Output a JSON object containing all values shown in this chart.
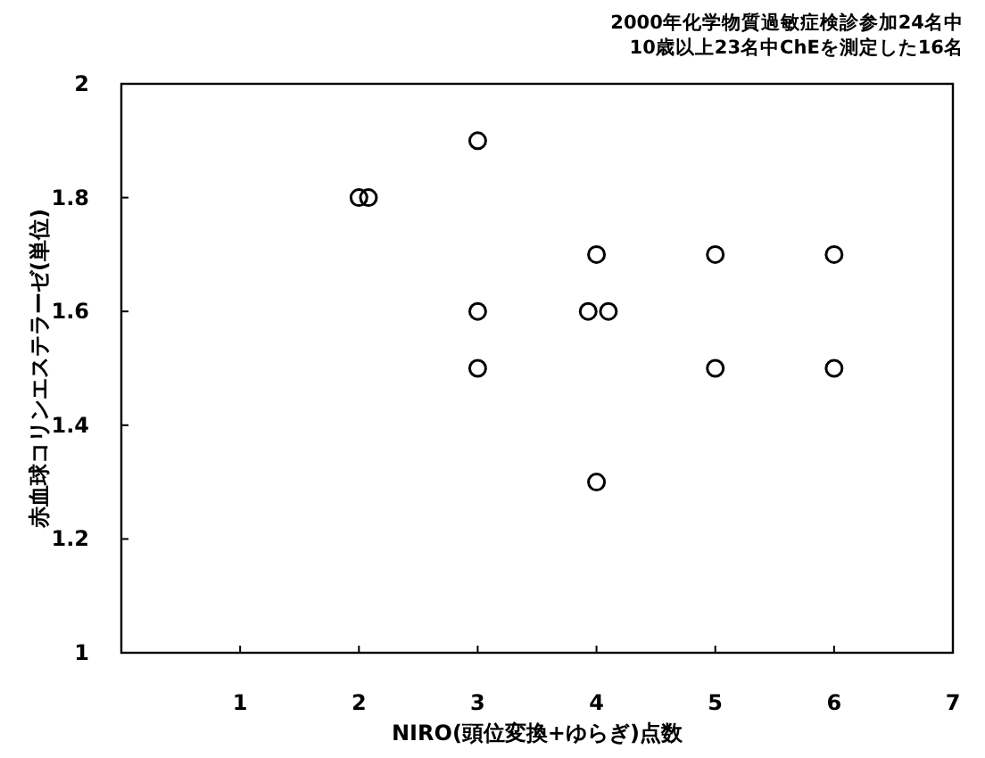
{
  "chart_data": {
    "type": "scatter",
    "title": "2000年化学物質過敏症検診参加24名中",
    "subtitle": "10歳以上23名中ChEを測定した16名",
    "xlabel": "NIRO(頭位変換+ゆらぎ)点数",
    "ylabel": "赤血球コリンエステラーゼ(単位)",
    "xlim": [
      0,
      7
    ],
    "xticks": [
      {
        "value": 0,
        "label": null
      },
      1,
      2,
      3,
      4,
      5,
      6,
      7
    ],
    "ylim": [
      1,
      2
    ],
    "yticks": [
      1,
      1.2,
      1.4,
      1.6,
      1.8,
      2
    ],
    "marker": "circle",
    "grid": false,
    "series": [
      {
        "color": "#000000",
        "x": [
          2.0,
          2.08,
          3,
          3,
          3,
          4,
          3.93,
          4.1,
          4,
          5,
          5,
          6,
          6
        ],
        "values": [
          1.8,
          1.8,
          1.9,
          1.6,
          1.5,
          1.7,
          1.6,
          1.6,
          1.3,
          1.7,
          1.5,
          1.7,
          1.5
        ]
      }
    ]
  }
}
